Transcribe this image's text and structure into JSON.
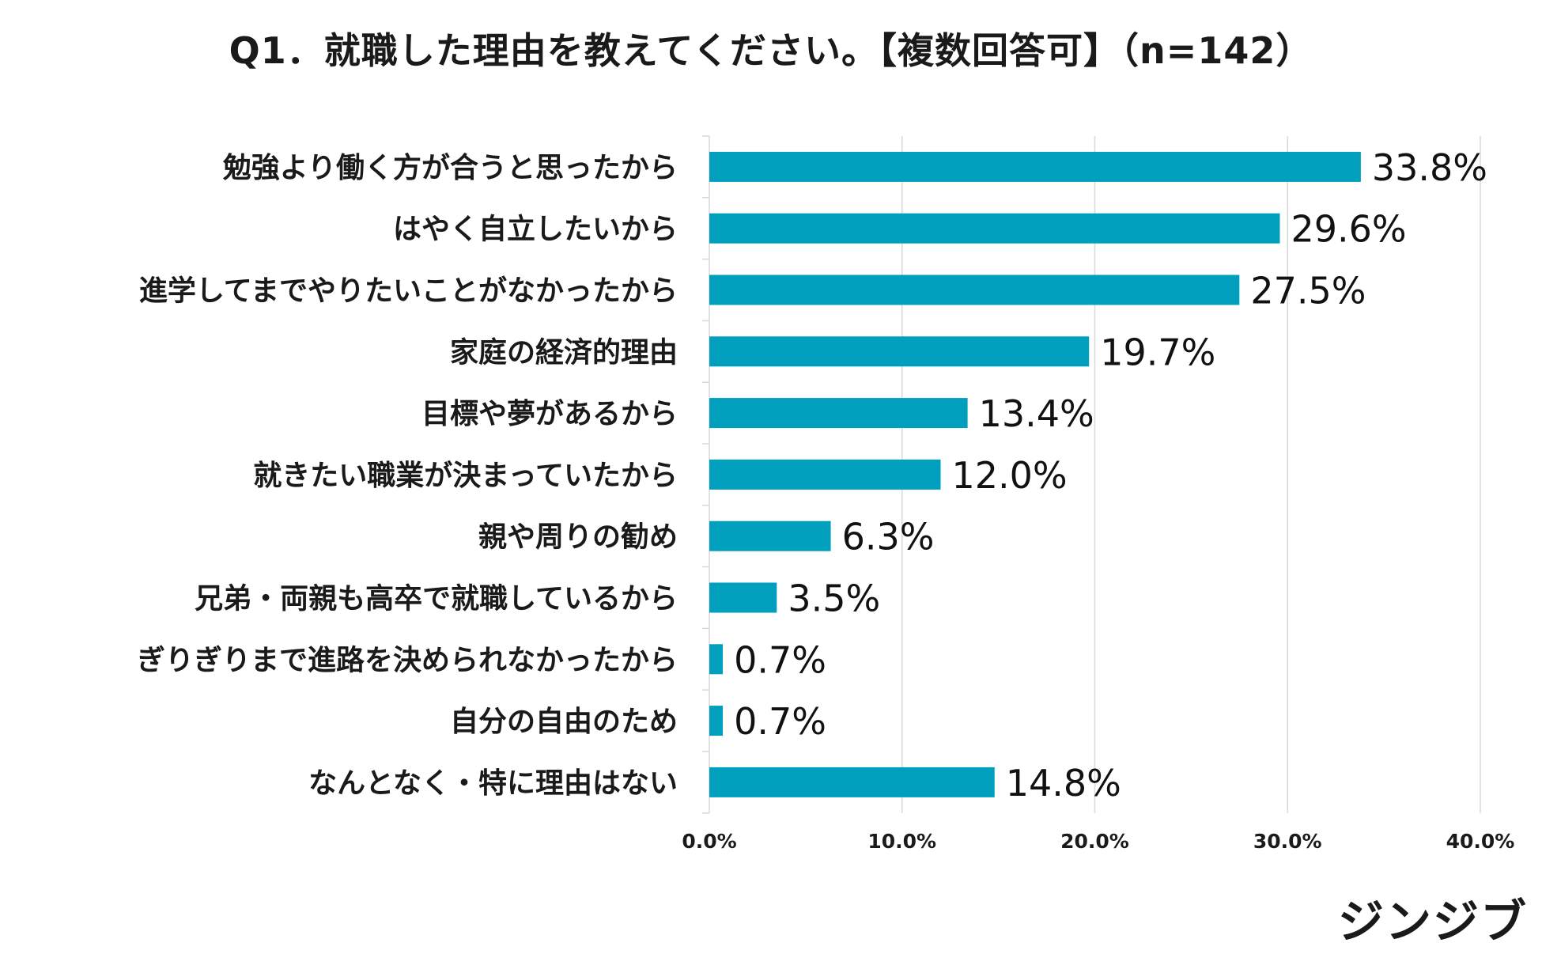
{
  "chart_data": {
    "type": "bar",
    "orientation": "horizontal",
    "title": "Q1．就職した理由を教えてください。【複数回答可】（n=142）",
    "categories": [
      "勉強より働く方が合うと思ったから",
      "はやく自立したいから",
      "進学してまでやりたいことがなかったから",
      "家庭の経済的理由",
      "目標や夢があるから",
      "就きたい職業が決まっていたから",
      "親や周りの勧め",
      "兄弟・両親も高卒で就職しているから",
      "ぎりぎりまで進路を決められなかったから",
      "自分の自由のため",
      "なんとなく・特に理由はない"
    ],
    "values": [
      33.8,
      29.6,
      27.5,
      19.7,
      13.4,
      12.0,
      6.3,
      3.5,
      0.7,
      0.7,
      14.8
    ],
    "value_labels": [
      "33.8%",
      "29.6%",
      "27.5%",
      "19.7%",
      "13.4%",
      "12.0%",
      "6.3%",
      "3.5%",
      "0.7%",
      "0.7%",
      "14.8%"
    ],
    "xlim": [
      0,
      40
    ],
    "xticks": [
      0,
      10,
      20,
      30,
      40
    ],
    "xtick_labels": [
      "0.0%",
      "10.0%",
      "20.0%",
      "30.0%",
      "40.0%"
    ],
    "xlabel": "",
    "ylabel": "",
    "grid": true,
    "bar_color": "#009fbd",
    "grid_color": "#d9d9d9"
  },
  "brand": {
    "logo_text": "ジンジブ"
  }
}
